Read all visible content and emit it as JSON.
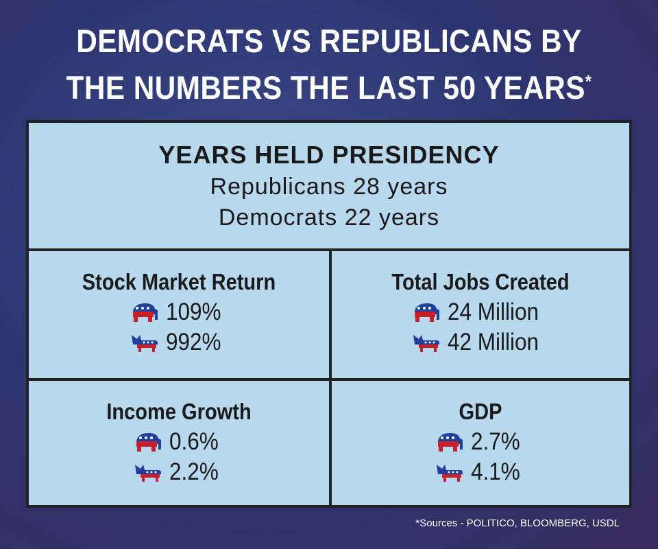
{
  "title": {
    "line1": "DEMOCRATS VS REPUBLICANS BY",
    "line2": "THE NUMBERS THE LAST 50 YEARS",
    "note_mark": "*"
  },
  "presidency": {
    "heading": "YEARS HELD PRESIDENCY",
    "republicans": "Republicans 28 years",
    "democrats": "Democrats 22 years"
  },
  "cells": [
    {
      "title": "Stock Market Return",
      "republican": "109%",
      "democrat": "992%"
    },
    {
      "title": "Total Jobs Created",
      "republican": "24 Million",
      "democrat": "42 Million"
    },
    {
      "title": "Income Growth",
      "republican": "0.6%",
      "democrat": "2.2%"
    },
    {
      "title": "GDP",
      "republican": "2.7%",
      "democrat": "4.1%"
    }
  ],
  "footnote": "*Sources - POLITICO, BLOOMBERG, USDL"
}
